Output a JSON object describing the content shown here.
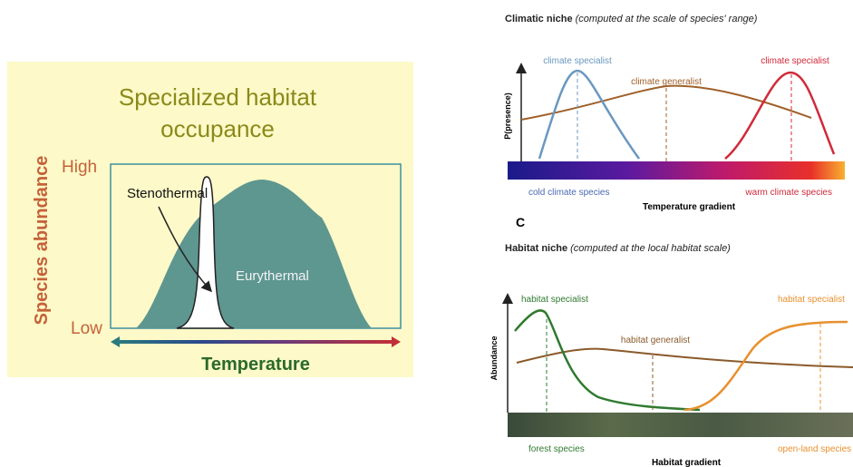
{
  "left": {
    "title_line1": "Specialized habitat",
    "title_line2": "occupance",
    "y_label": "Species abundance",
    "y_high": "High",
    "y_low": "Low",
    "x_label": "Temperature",
    "stenothermal": "Stenothermal",
    "eurythermal": "Eurythermal"
  },
  "climatic": {
    "title": "Climatic niche",
    "subtitle": "(computed at the scale of species' range)",
    "y_label": "P(presence)",
    "specialist_left": "climate specialist",
    "generalist": "climate generalist",
    "specialist_right": "climate specialist",
    "cold": "cold climate species",
    "warm": "warm climate species",
    "x_label": "Temperature gradient"
  },
  "panel_letter": "C",
  "habitat": {
    "title": "Habitat niche",
    "subtitle": "(computed at the local habitat scale)",
    "y_label": "Abundance",
    "specialist_left": "habitat specialist",
    "generalist": "habitat generalist",
    "specialist_right": "habitat specialist",
    "forest": "forest species",
    "open": "open-land species",
    "x_label": "Habitat gradient"
  }
}
